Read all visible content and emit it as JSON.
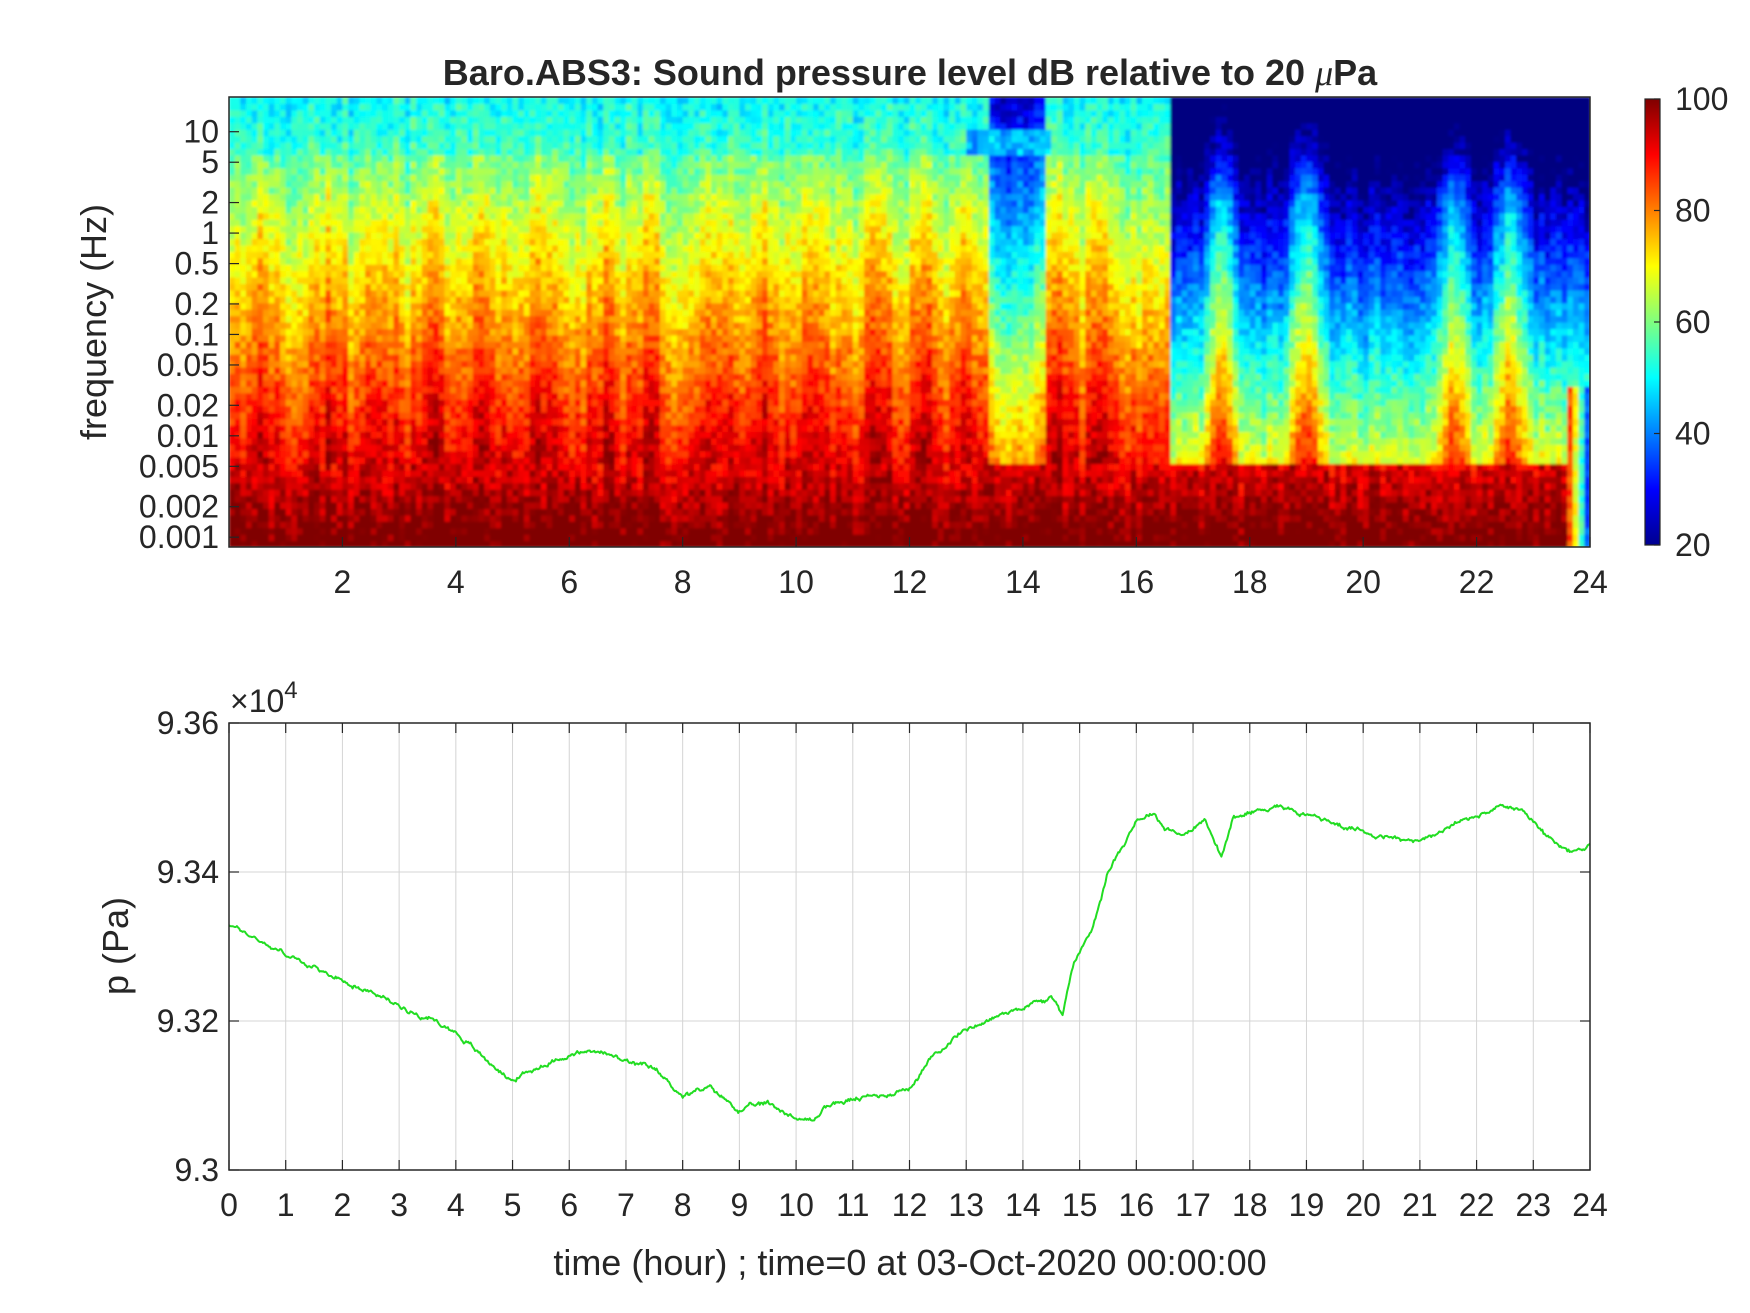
{
  "colors": {
    "background": "#ffffff",
    "axis": "#262626",
    "grid": "#d4d4d4",
    "pressure_line": "#22dd22"
  },
  "chart_data": [
    {
      "type": "heatmap",
      "title_prefix": "Baro.ABS3: Sound pressure level dB relative to 20 ",
      "title_mu": "μ",
      "title_suffix": "Pa",
      "xlabel": "",
      "ylabel": "frequency (Hz)",
      "x_ticks": [
        "2",
        "4",
        "6",
        "8",
        "10",
        "12",
        "14",
        "16",
        "18",
        "20",
        "22",
        "24"
      ],
      "xlim": [
        0,
        24
      ],
      "y_scale": "log",
      "y_ticks": [
        "0.001",
        "0.002",
        "0.005",
        "0.01",
        "0.02",
        "0.05",
        "0.1",
        "0.2",
        "0.5",
        "1",
        "2",
        "5",
        "10"
      ],
      "ylim": [
        0.001,
        20
      ],
      "colorbar": {
        "colormap": "jet",
        "range": [
          20,
          100
        ],
        "ticks": [
          "20",
          "40",
          "60",
          "80",
          "100"
        ]
      },
      "content": "SPL very high (~95-100 dB) at low frequencies below 0.005 Hz throughout the day; high (80-90 dB) up to ~1 Hz from hour 0 to ~16.5 with vertical bursts; after hour 16.5 levels above 0.01 Hz drop to 45-65 dB with a few bursts near hours 17.5, 19 and 21.5; frequencies above ~5 Hz around 50-55 dB (cyan)."
    },
    {
      "type": "line",
      "title": "",
      "xlabel": "time (hour) ; time=0 at 03-Oct-2020 00:00:00",
      "ylabel": "p (Pa)",
      "y_exponent_label": "×10",
      "y_exponent_power": "4",
      "x_ticks": [
        "0",
        "1",
        "2",
        "3",
        "4",
        "5",
        "6",
        "7",
        "8",
        "9",
        "10",
        "11",
        "12",
        "13",
        "14",
        "15",
        "16",
        "17",
        "18",
        "19",
        "20",
        "21",
        "22",
        "23",
        "24"
      ],
      "y_ticks": [
        "9.3",
        "9.32",
        "9.34",
        "9.36"
      ],
      "xlim": [
        0,
        24
      ],
      "ylim": [
        93000,
        93600
      ],
      "grid": true,
      "series": [
        {
          "x": [
            0,
            0.5,
            1,
            1.5,
            2,
            2.5,
            3,
            3.5,
            4,
            4.5,
            5,
            5.5,
            6,
            6.5,
            7,
            7.5,
            8,
            8.5,
            9,
            9.5,
            10,
            10.3,
            10.5,
            11,
            11.5,
            12,
            12.5,
            13,
            13.5,
            14,
            14.5,
            14.7,
            14.9,
            15.2,
            15.5,
            16,
            16.3,
            16.5,
            16.9,
            17.2,
            17.5,
            17.7,
            18,
            18.5,
            18.9,
            19.3,
            19.7,
            20,
            20.5,
            21,
            21.5,
            22,
            22.5,
            22.8,
            23.2,
            23.6,
            24
          ],
          "y": [
            93330,
            93310,
            93290,
            93270,
            93255,
            93240,
            93220,
            93205,
            93185,
            93150,
            93120,
            93140,
            93155,
            93160,
            93145,
            93135,
            93100,
            93110,
            93080,
            93090,
            93070,
            93065,
            93085,
            93095,
            93100,
            93110,
            93160,
            93190,
            93205,
            93220,
            93230,
            93210,
            93280,
            93320,
            93400,
            93470,
            93480,
            93460,
            93450,
            93470,
            93420,
            93470,
            93480,
            93490,
            93480,
            93470,
            93460,
            93455,
            93445,
            93440,
            93460,
            93475,
            93490,
            93480,
            93450,
            93425,
            93435
          ]
        }
      ]
    }
  ]
}
